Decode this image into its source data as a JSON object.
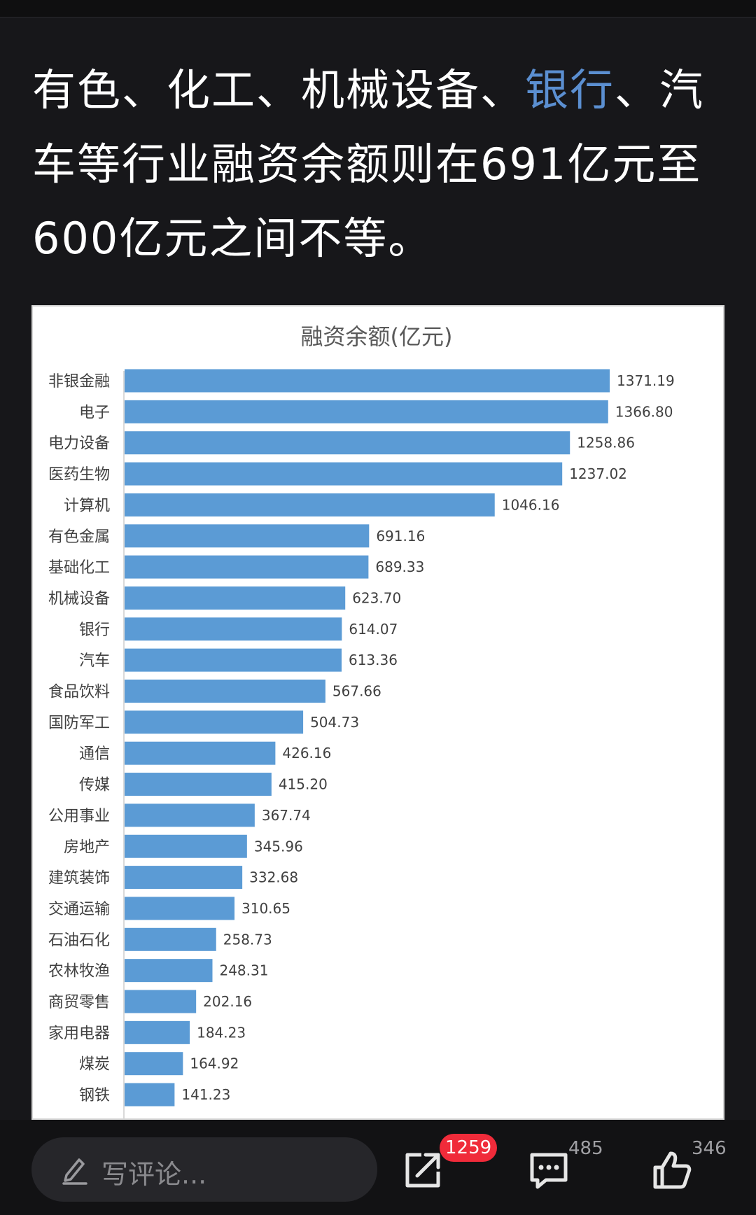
{
  "article": {
    "text_before": "有色、化工、机械设备、",
    "link_text": "银行",
    "text_after": "、汽车等行业融资余额则在691亿元至600亿元之间不等。"
  },
  "colors": {
    "background": "#17171a",
    "bar": "#5b9bd5",
    "link": "#5b8fd1",
    "badge": "#f02b3a"
  },
  "chart_data": {
    "type": "bar",
    "orientation": "horizontal",
    "title": "融资余额(亿元)",
    "categories": [
      "非银金融",
      "电子",
      "电力设备",
      "医药生物",
      "计算机",
      "有色金属",
      "基础化工",
      "机械设备",
      "银行",
      "汽车",
      "食品饮料",
      "国防军工",
      "通信",
      "传媒",
      "公用事业",
      "房地产",
      "建筑装饰",
      "交通运输",
      "石油石化",
      "农林牧渔",
      "商贸零售",
      "家用电器",
      "煤炭",
      "钢铁"
    ],
    "values": [
      1371.19,
      1366.8,
      1258.86,
      1237.02,
      1046.16,
      691.16,
      689.33,
      623.7,
      614.07,
      613.36,
      567.66,
      504.73,
      426.16,
      415.2,
      367.74,
      345.96,
      332.68,
      310.65,
      258.73,
      248.31,
      202.16,
      184.23,
      164.92,
      141.23
    ],
    "value_labels": [
      "1371.19",
      "1366.80",
      "1258.86",
      "1237.02",
      "1046.16",
      "691.16",
      "689.33",
      "623.70",
      "614.07",
      "613.36",
      "567.66",
      "504.73",
      "426.16",
      "415.20",
      "367.74",
      "345.96",
      "332.68",
      "310.65",
      "258.73",
      "248.31",
      "202.16",
      "184.23",
      "164.92",
      "141.23"
    ],
    "xlim": [
      0,
      1371.19
    ],
    "grid": false,
    "legend": "none"
  },
  "bottom_bar": {
    "comment_placeholder": "写评论...",
    "share_badge": "1259",
    "comment_count": "485",
    "like_count": "346",
    "icons": [
      "pencil-icon",
      "share-icon",
      "comment-icon",
      "like-icon"
    ]
  }
}
